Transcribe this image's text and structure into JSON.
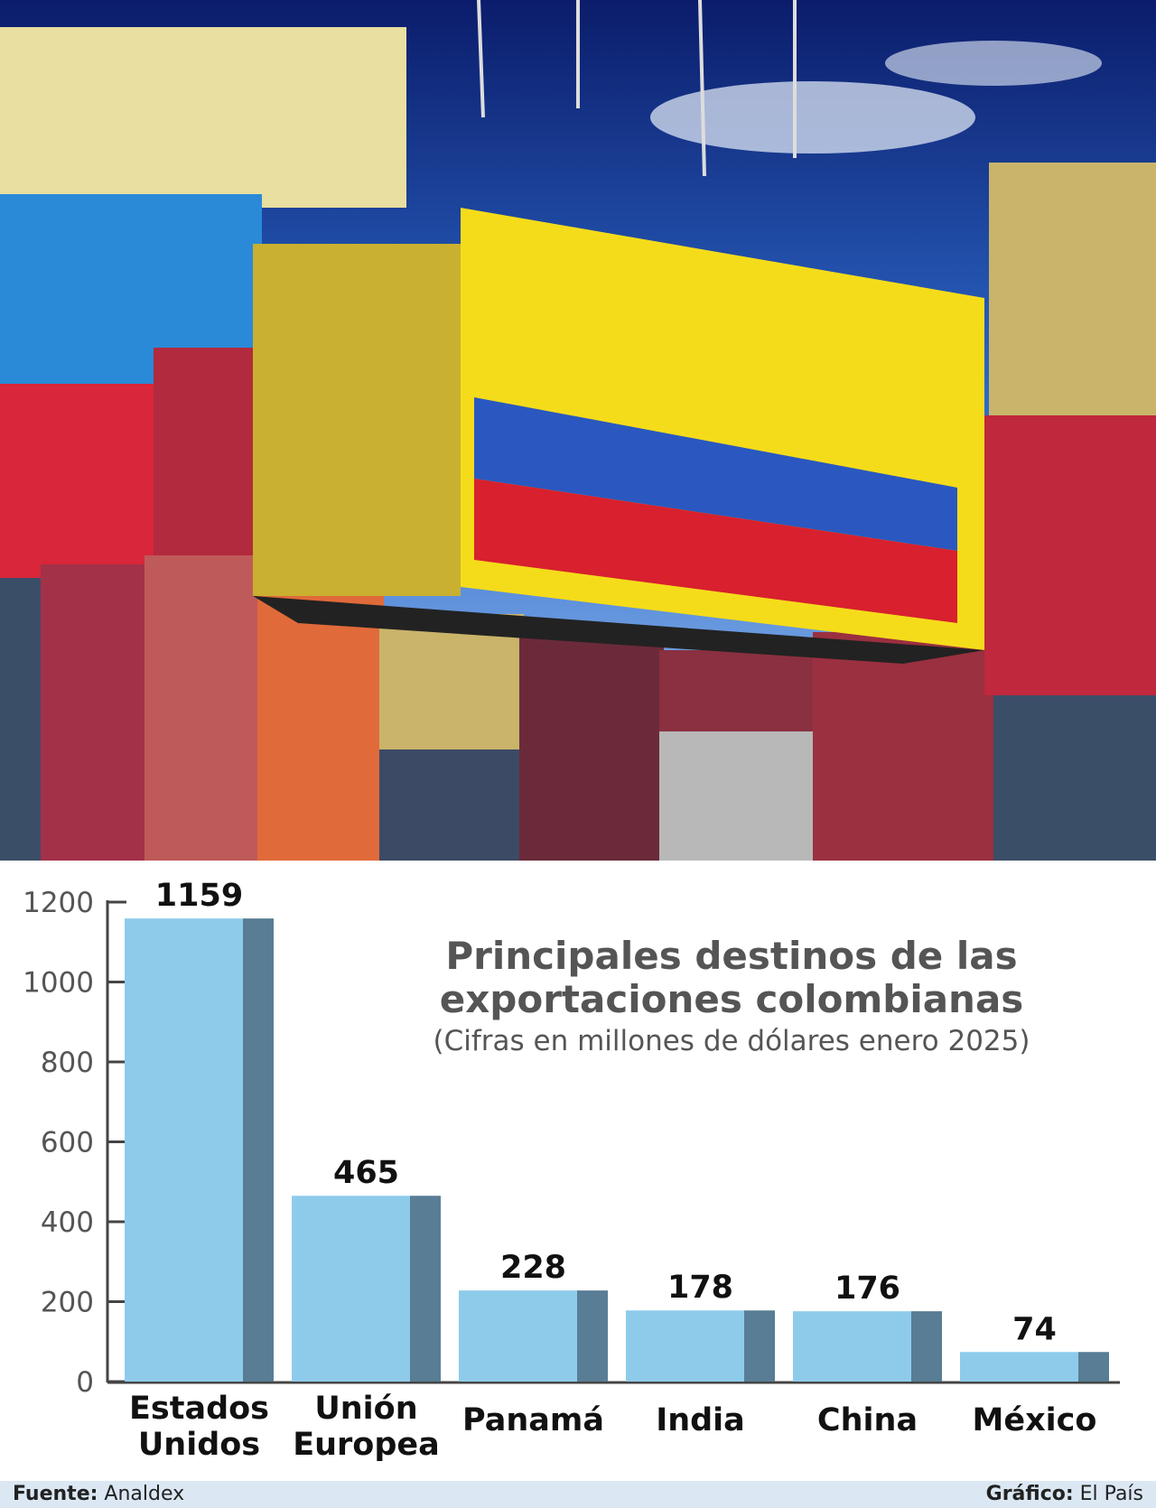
{
  "chart_data": {
    "type": "bar",
    "title": "Principales destinos de las exportaciones colombianas",
    "subtitle": "(Cifras en millones de dólares enero 2025)",
    "categories": [
      "Estados Unidos",
      "Unión Europea",
      "Panamá",
      "India",
      "China",
      "México"
    ],
    "values": [
      1159,
      465,
      228,
      178,
      176,
      74
    ],
    "color": "#8ecbeb",
    "side_color": "#587d94",
    "ylim": [
      0,
      1200
    ],
    "yticks": [
      0,
      200,
      400,
      600,
      800,
      1000,
      1200
    ]
  },
  "footer": {
    "source_label": "Fuente:",
    "source": "Analdex",
    "credit_label": "Gráfico:",
    "credit": "El País"
  }
}
